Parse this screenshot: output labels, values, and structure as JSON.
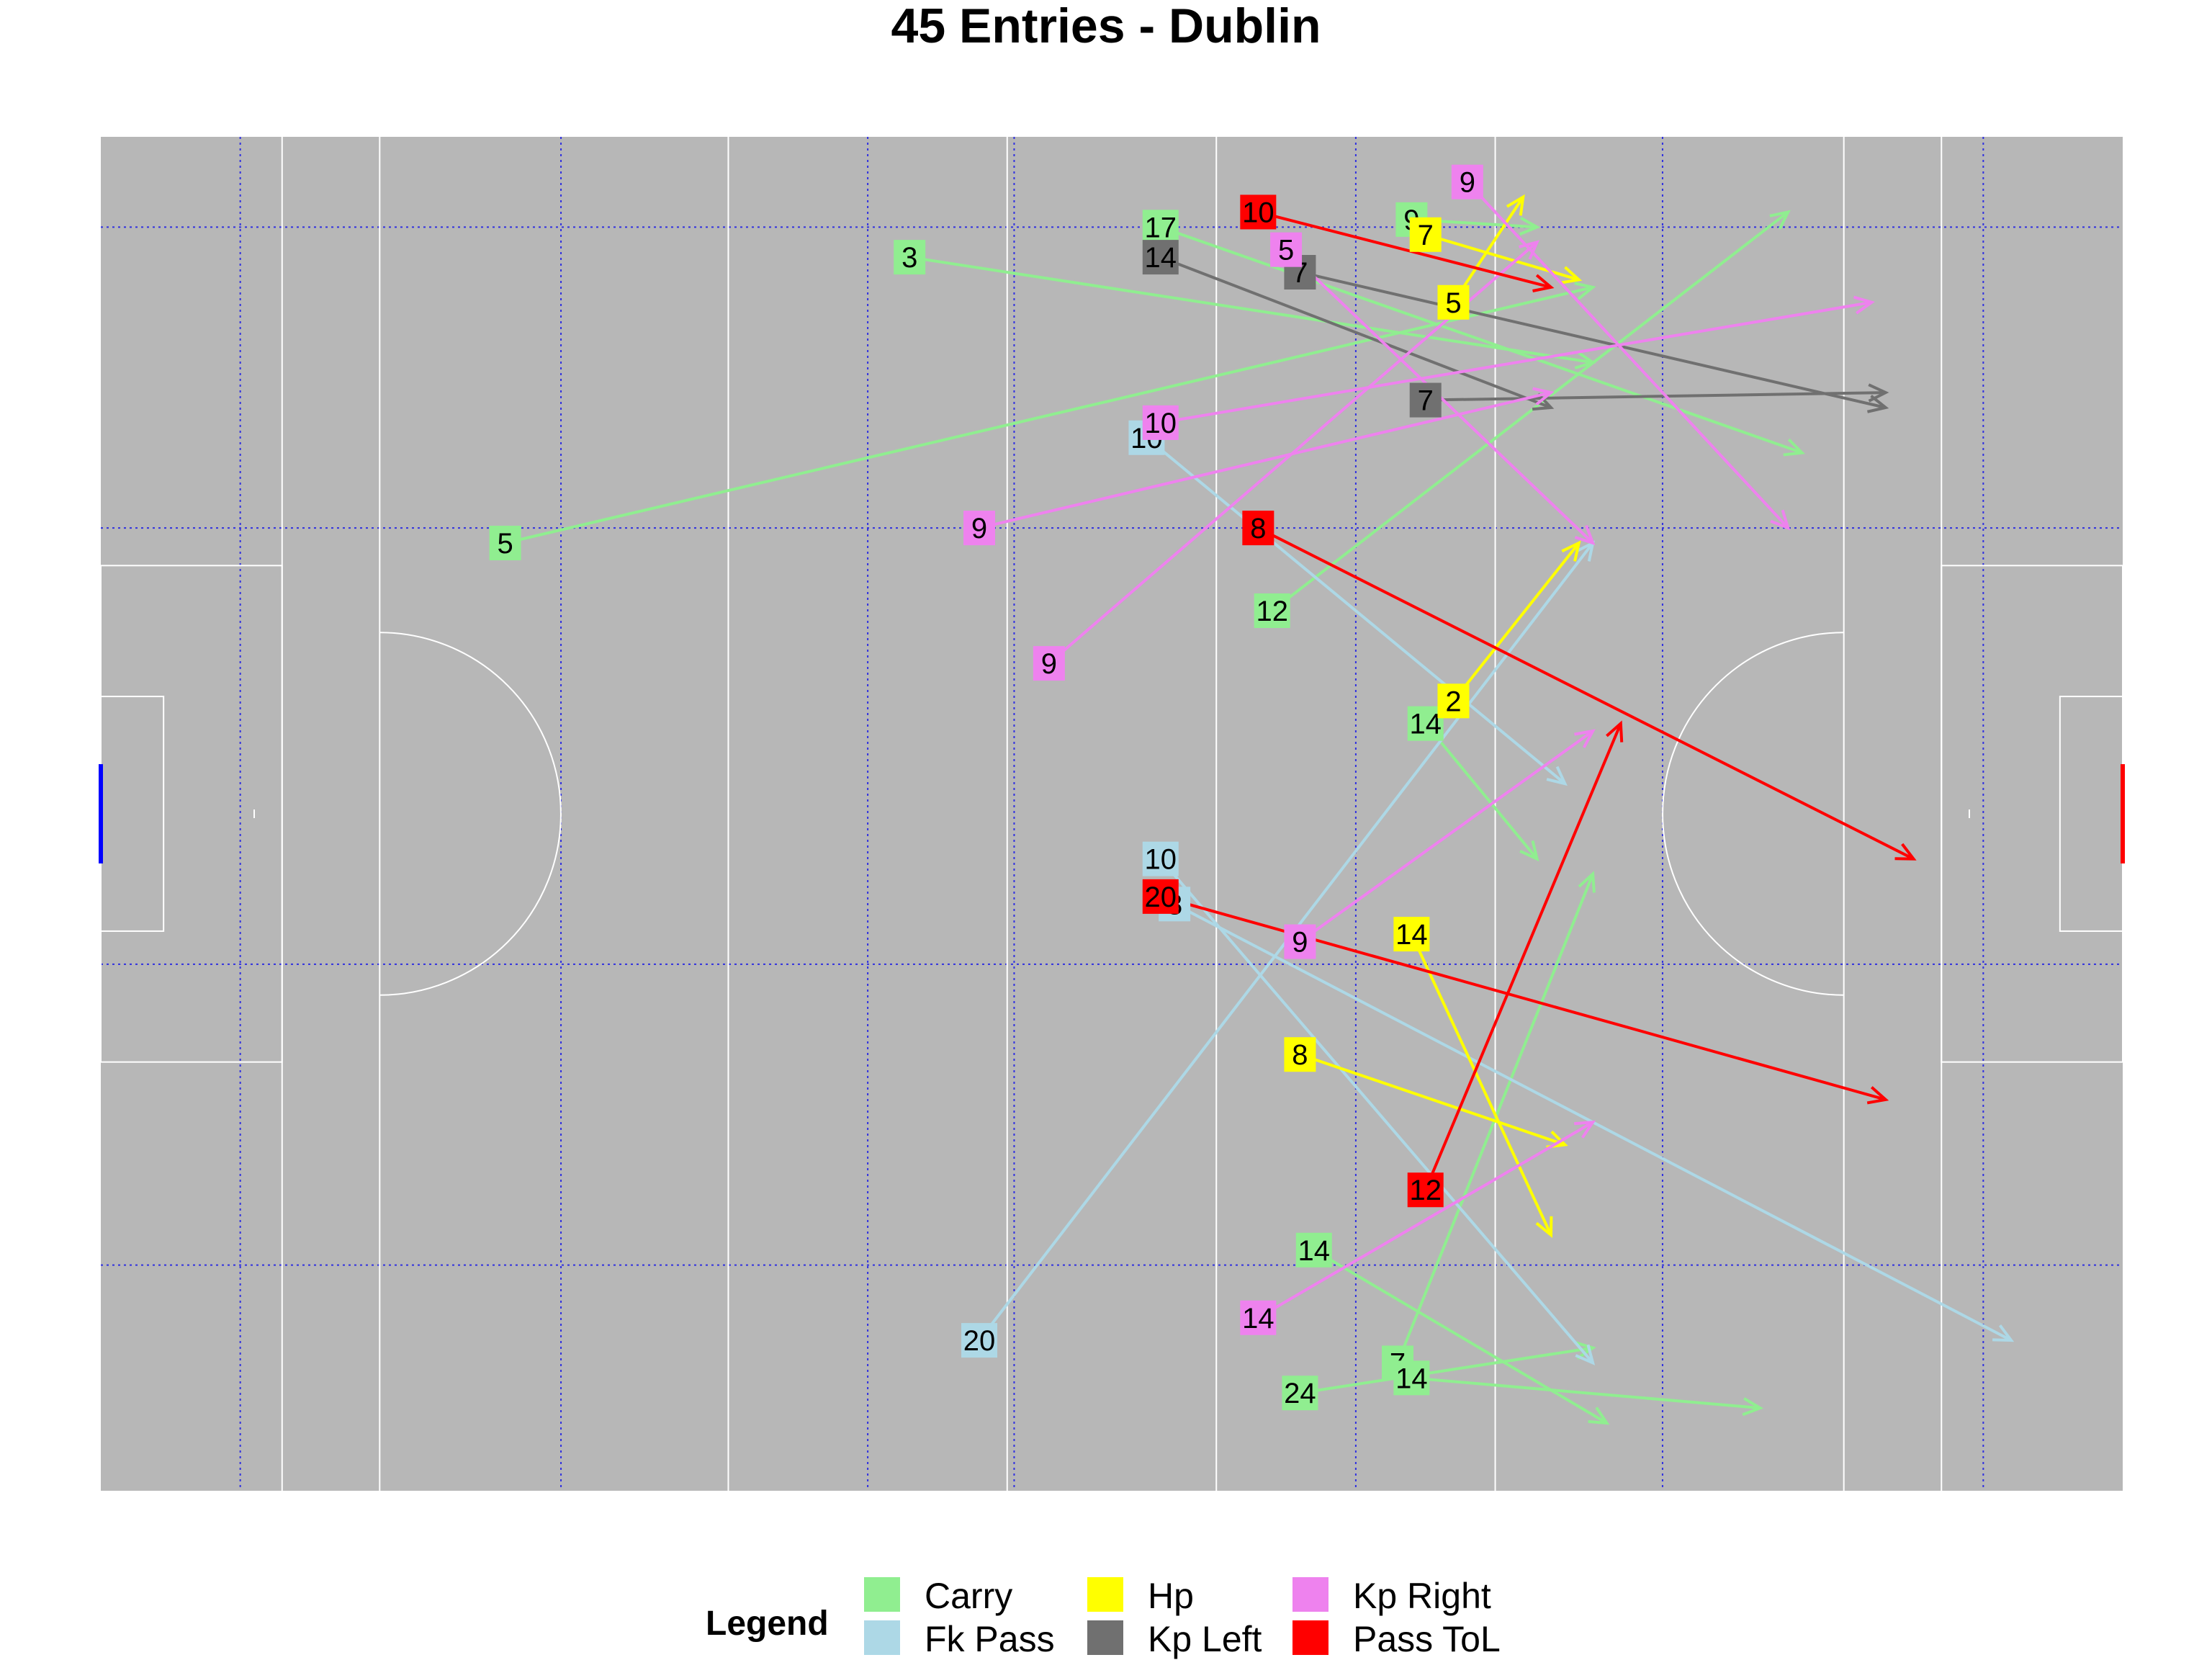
{
  "chart_data": {
    "type": "scatter",
    "title": "45 Entries - Dublin",
    "xlabel": "",
    "ylabel": "",
    "xlim": [
      0,
      145
    ],
    "ylim": [
      0,
      90
    ],
    "grid": true,
    "legend_title": "Legend",
    "legend_position": "bottom",
    "categories": [
      {
        "name": "Carry",
        "color": "#90EE90"
      },
      {
        "name": "Fk Pass",
        "color": "#ADD8E6"
      },
      {
        "name": "Hp",
        "color": "#FFFF00"
      },
      {
        "name": "Kp Left",
        "color": "#707070"
      },
      {
        "name": "Kp Right",
        "color": "#EE82EE"
      },
      {
        "name": "Pass ToL",
        "color": "#FF0000"
      }
    ],
    "entries": [
      {
        "type": "Carry",
        "label": "3",
        "x": 58,
        "y": 82,
        "x_end": 107,
        "y_end": 75
      },
      {
        "type": "Carry",
        "label": "5",
        "x": 29,
        "y": 63,
        "x_end": 107,
        "y_end": 80
      },
      {
        "type": "Carry",
        "label": "17",
        "x": 76,
        "y": 84,
        "x_end": 122,
        "y_end": 69
      },
      {
        "type": "Carry",
        "label": "9",
        "x": 94,
        "y": 84.5,
        "x_end": 103,
        "y_end": 84
      },
      {
        "type": "Carry",
        "label": "12",
        "x": 84,
        "y": 58.5,
        "x_end": 121,
        "y_end": 85
      },
      {
        "type": "Carry",
        "label": "14",
        "x": 95,
        "y": 51,
        "x_end": 103,
        "y_end": 42
      },
      {
        "type": "Carry",
        "label": "14",
        "x": 87,
        "y": 16,
        "x_end": 108,
        "y_end": 4.5
      },
      {
        "type": "Carry",
        "label": "7",
        "x": 93,
        "y": 8.5,
        "x_end": 107,
        "y_end": 41
      },
      {
        "type": "Carry",
        "label": "24",
        "x": 86,
        "y": 6.5,
        "x_end": 107,
        "y_end": 9.5
      },
      {
        "type": "Carry",
        "label": "14",
        "x": 94,
        "y": 7.5,
        "x_end": 119,
        "y_end": 5.5
      },
      {
        "type": "Fk Pass",
        "label": "10",
        "x": 75,
        "y": 70,
        "x_end": 105,
        "y_end": 47
      },
      {
        "type": "Fk Pass",
        "label": "10",
        "x": 76,
        "y": 42,
        "x_end": 107,
        "y_end": 8.5
      },
      {
        "type": "Fk Pass",
        "label": "8",
        "x": 77,
        "y": 39,
        "x_end": 137,
        "y_end": 10
      },
      {
        "type": "Fk Pass",
        "label": "20",
        "x": 63,
        "y": 10,
        "x_end": 107,
        "y_end": 63
      },
      {
        "type": "Hp",
        "label": "7",
        "x": 95,
        "y": 83.5,
        "x_end": 106,
        "y_end": 80.5
      },
      {
        "type": "Hp",
        "label": "5",
        "x": 97,
        "y": 79,
        "x_end": 102,
        "y_end": 86
      },
      {
        "type": "Hp",
        "label": "2",
        "x": 97,
        "y": 52.5,
        "x_end": 106,
        "y_end": 63
      },
      {
        "type": "Hp",
        "label": "14",
        "x": 94,
        "y": 37,
        "x_end": 104,
        "y_end": 17
      },
      {
        "type": "Hp",
        "label": "8",
        "x": 86,
        "y": 29,
        "x_end": 105,
        "y_end": 23
      },
      {
        "type": "Kp Left",
        "label": "14",
        "x": 76,
        "y": 82,
        "x_end": 104,
        "y_end": 72
      },
      {
        "type": "Kp Left",
        "label": "7",
        "x": 86,
        "y": 81,
        "x_end": 128,
        "y_end": 72
      },
      {
        "type": "Kp Left",
        "label": "7",
        "x": 95,
        "y": 72.5,
        "x_end": 128,
        "y_end": 73
      },
      {
        "type": "Kp Right",
        "label": "9",
        "x": 98,
        "y": 87,
        "x_end": 121,
        "y_end": 64
      },
      {
        "type": "Kp Right",
        "label": "5",
        "x": 85,
        "y": 82.5,
        "x_end": 107,
        "y_end": 63
      },
      {
        "type": "Kp Right",
        "label": "10",
        "x": 76,
        "y": 71,
        "x_end": 127,
        "y_end": 79
      },
      {
        "type": "Kp Right",
        "label": "9",
        "x": 63,
        "y": 64,
        "x_end": 104,
        "y_end": 73
      },
      {
        "type": "Kp Right",
        "label": "9",
        "x": 68,
        "y": 55,
        "x_end": 103,
        "y_end": 83
      },
      {
        "type": "Kp Right",
        "label": "9",
        "x": 86,
        "y": 36.5,
        "x_end": 107,
        "y_end": 50.5
      },
      {
        "type": "Kp Right",
        "label": "14",
        "x": 83,
        "y": 11.5,
        "x_end": 107,
        "y_end": 24.5
      },
      {
        "type": "Pass ToL",
        "label": "10",
        "x": 83,
        "y": 85,
        "x_end": 104,
        "y_end": 80
      },
      {
        "type": "Pass ToL",
        "label": "8",
        "x": 83,
        "y": 64,
        "x_end": 130,
        "y_end": 42
      },
      {
        "type": "Pass ToL",
        "label": "20",
        "x": 76,
        "y": 39.5,
        "x_end": 128,
        "y_end": 26
      },
      {
        "type": "Pass ToL",
        "label": "12",
        "x": 95,
        "y": 20,
        "x_end": 109,
        "y_end": 51
      }
    ]
  }
}
